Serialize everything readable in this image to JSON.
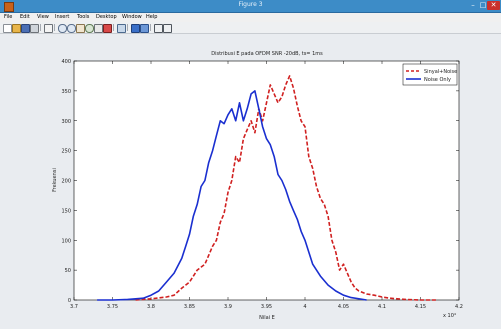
{
  "window": {
    "title": "Figure 3",
    "minimize_glyph": "–",
    "maximize_glyph": "□",
    "close_glyph": "✕"
  },
  "menu": [
    "File",
    "Edit",
    "View",
    "Insert",
    "Tools",
    "Desktop",
    "Window",
    "Help"
  ],
  "toolbar_icons": [
    "new-figure-icon",
    "open-file-icon",
    "save-icon",
    "print-icon",
    "select-arrow-icon",
    "zoom-in-icon",
    "zoom-out-icon",
    "pan-icon",
    "rotate-3d-icon",
    "data-cursor-icon",
    "brush-icon",
    "link-plot-icon",
    "colorbar-icon",
    "legend-icon",
    "hide-plot-tools-icon",
    "show-plot-tools-icon"
  ],
  "chart_data": {
    "type": "line",
    "title": "Distribusi E pada OFDM SNR -20dB, ts= 1ms",
    "xlabel": "Nilai E",
    "ylabel": "Frekuensi",
    "x_exponent": "x 10⁴",
    "xlim": [
      3.7,
      4.2
    ],
    "ylim": [
      0,
      400
    ],
    "xticks": [
      "3.7",
      "3.75",
      "3.8",
      "3.85",
      "3.9",
      "3.95",
      "4",
      "4.05",
      "4.1",
      "4.15",
      "4.2"
    ],
    "yticks": [
      "0",
      "50",
      "100",
      "150",
      "200",
      "250",
      "300",
      "350",
      "400"
    ],
    "legend_position": "top-right",
    "series": [
      {
        "name": "Sinyal+Noise",
        "color": "#d02020",
        "dash": "dashed",
        "x": [
          3.78,
          3.8,
          3.82,
          3.83,
          3.84,
          3.85,
          3.86,
          3.87,
          3.88,
          3.885,
          3.89,
          3.895,
          3.9,
          3.905,
          3.91,
          3.915,
          3.92,
          3.925,
          3.93,
          3.935,
          3.94,
          3.945,
          3.95,
          3.955,
          3.96,
          3.965,
          3.97,
          3.975,
          3.98,
          3.985,
          3.99,
          3.995,
          4.0,
          4.005,
          4.01,
          4.015,
          4.02,
          4.025,
          4.03,
          4.035,
          4.04,
          4.045,
          4.05,
          4.055,
          4.06,
          4.065,
          4.07,
          4.08,
          4.09,
          4.1,
          4.11,
          4.12,
          4.13,
          4.15,
          4.17
        ],
        "y": [
          0,
          2,
          5,
          8,
          20,
          30,
          50,
          60,
          90,
          100,
          130,
          145,
          180,
          200,
          240,
          230,
          270,
          285,
          300,
          280,
          320,
          300,
          330,
          360,
          345,
          330,
          340,
          360,
          375,
          355,
          325,
          300,
          290,
          240,
          220,
          190,
          170,
          160,
          140,
          100,
          80,
          50,
          60,
          45,
          30,
          20,
          15,
          10,
          8,
          5,
          3,
          2,
          1,
          0,
          0
        ]
      },
      {
        "name": "Noise Only",
        "color": "#1a2fd0",
        "dash": "solid",
        "x": [
          3.73,
          3.75,
          3.77,
          3.79,
          3.8,
          3.81,
          3.82,
          3.83,
          3.84,
          3.845,
          3.85,
          3.855,
          3.86,
          3.865,
          3.87,
          3.875,
          3.88,
          3.885,
          3.89,
          3.895,
          3.9,
          3.905,
          3.91,
          3.915,
          3.92,
          3.925,
          3.93,
          3.935,
          3.94,
          3.945,
          3.95,
          3.955,
          3.96,
          3.965,
          3.97,
          3.975,
          3.98,
          3.985,
          3.99,
          3.995,
          4.0,
          4.01,
          4.02,
          4.03,
          4.04,
          4.05,
          4.06,
          4.08
        ],
        "y": [
          0,
          0,
          1,
          3,
          8,
          15,
          30,
          45,
          70,
          90,
          110,
          140,
          160,
          190,
          200,
          230,
          250,
          275,
          300,
          295,
          310,
          320,
          300,
          330,
          300,
          320,
          345,
          350,
          320,
          290,
          270,
          260,
          240,
          210,
          200,
          185,
          165,
          150,
          135,
          115,
          100,
          60,
          40,
          25,
          15,
          8,
          4,
          0
        ]
      }
    ]
  }
}
